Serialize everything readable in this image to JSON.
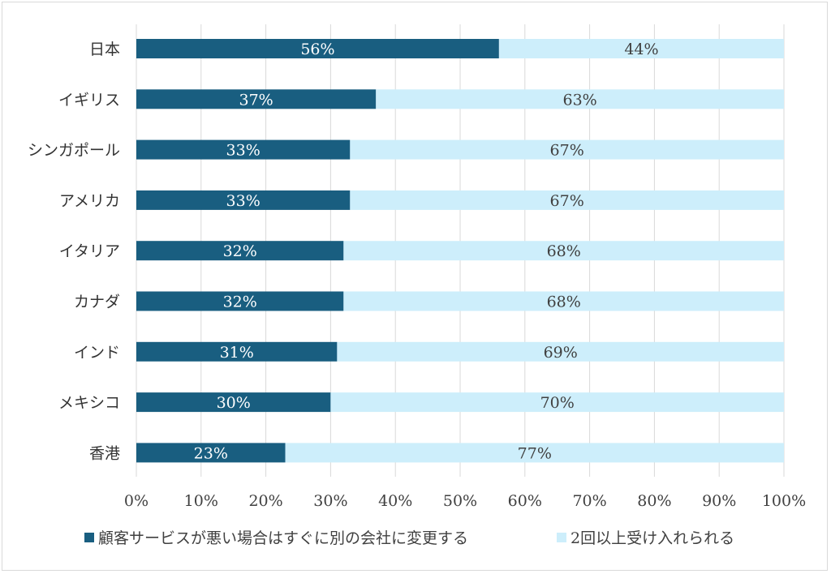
{
  "chart_data": {
    "type": "bar",
    "orientation": "horizontal",
    "stacked": true,
    "categories": [
      "日本",
      "イギリス",
      "シンガポール",
      "アメリカ",
      "イタリア",
      "カナダ",
      "インド",
      "メキシコ",
      "香港"
    ],
    "series": [
      {
        "name": "顧客サービスが悪い場合はすぐに別の会社に変更する",
        "values": [
          56,
          37,
          33,
          33,
          32,
          32,
          31,
          30,
          23
        ],
        "labels": [
          "56%",
          "37%",
          "33%",
          "33%",
          "32%",
          "32%",
          "31%",
          "30%",
          "23%"
        ],
        "color": "#195e80",
        "label_color": "#ffffff"
      },
      {
        "name": "2回以上受け入れられる",
        "values": [
          44,
          63,
          67,
          67,
          68,
          68,
          69,
          70,
          77
        ],
        "labels": [
          "44%",
          "63%",
          "67%",
          "67%",
          "68%",
          "68%",
          "69%",
          "70%",
          "77%"
        ],
        "color": "#cdeefb",
        "label_color": "#404040"
      }
    ],
    "x_ticks": [
      "0%",
      "10%",
      "20%",
      "30%",
      "40%",
      "50%",
      "60%",
      "70%",
      "80%",
      "90%",
      "100%"
    ],
    "xlim": [
      0,
      100
    ],
    "grid": true,
    "legend_position": "bottom",
    "gridline_color": "#d9d9d9"
  }
}
